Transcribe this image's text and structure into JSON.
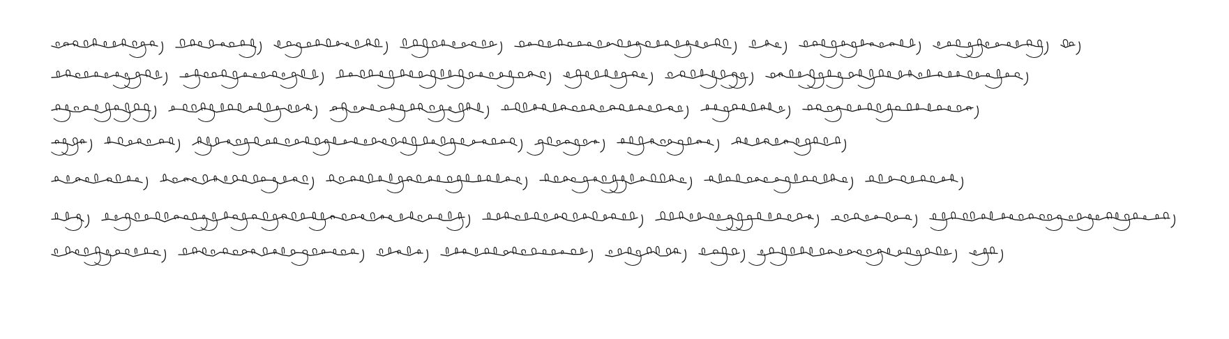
{
  "document": {
    "kind": "handwritten manuscript page",
    "script_style": "cursive Tibetan (handwritten, not transcribed)",
    "ink_color": "#111111",
    "paper_color": "#ffffff",
    "line_count": 7,
    "lines": [
      {
        "segments": [
          152,
          115,
          155,
          138,
          310,
          46,
          166,
          157,
          20
        ]
      },
      {
        "segments": [
          158,
          198,
          300,
          120,
          118,
          368
        ]
      },
      {
        "segments": [
          142,
          205,
          220,
          260,
          120,
          244
        ]
      },
      {
        "segments": [
          50,
          100,
          465,
          92,
          138,
          156
        ]
      },
      {
        "segments": [
          130,
          212,
          280,
          210,
          205,
          132
        ]
      },
      {
        "segments": [
          46,
          520,
          222,
          226,
          115,
          344
        ]
      },
      {
        "segments": [
          156,
          258,
          66,
          210,
          108,
          58,
          278,
          40
        ]
      }
    ]
  }
}
